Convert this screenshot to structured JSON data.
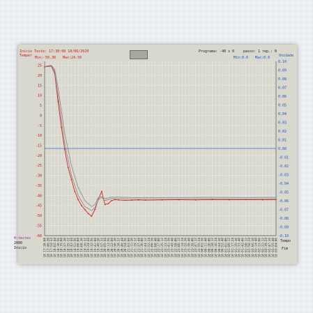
{
  "header": {
    "start_label": "Inicio Teste: 17:38:08 18/06/2020",
    "program_label": "Programa:  -40 x 0",
    "step_label": "passo: 1",
    "rep_label": "rep.: 0",
    "min_left": "Min:-50.36",
    "max_left": "Max:24.56",
    "min_right": "Min:0.0",
    "max_right": "Max:0.0",
    "y_left_title": "Temper",
    "y_right_title": "Unidade",
    "bottom_right": "Tempo",
    "bottom_right2": "Fim",
    "bottom_left1": "H:testes",
    "bottom_left2": "2000",
    "bottom_left3": "Inicio"
  },
  "colors": {
    "panel": "#d8d8cf",
    "grid": "#ffffff",
    "red_series": "#dd2020",
    "gray_series": "#8e8e8e",
    "blue_line": "#3a6ed8",
    "left_axis_text": "#c81818",
    "right_axis_text": "#1a55c8"
  },
  "chart_data": {
    "type": "line",
    "title": "",
    "y_left": {
      "ticks": [
        25,
        20,
        15,
        10,
        5,
        0,
        -5,
        -10,
        -15,
        -20,
        -25,
        -30,
        -35,
        -40,
        -45,
        -50,
        -55,
        -60
      ],
      "ylim": [
        -60,
        27
      ]
    },
    "y_right": {
      "ticks": [
        "0.10",
        "0.09",
        "0.08",
        "0.07",
        "0.06",
        "0.05",
        "0.04",
        "0.03",
        "0.02",
        "0.01",
        "0.00",
        "-0.01",
        "-0.02",
        "-0.03",
        "-0.04",
        "-0.05",
        "-0.06",
        "-0.07",
        "-0.08",
        "-0.09",
        "-0.10"
      ],
      "ylim": [
        -0.1,
        0.1
      ]
    },
    "x_tick_labels": [
      "17:38:08",
      "17:46:20",
      "17:54:32",
      "18:02:44",
      "18:10:56",
      "18:19:08",
      "18:27:20",
      "18:35:32",
      "18:43:44",
      "18:51:56",
      "19:00:08",
      "19:08:20",
      "19:16:32",
      "19:24:44",
      "19:32:56",
      "19:41:08",
      "19:49:20",
      "19:57:32",
      "20:05:44",
      "20:13:56",
      "20:22:08",
      "20:30:20",
      "20:38:32",
      "20:46:44",
      "20:54:56",
      "21:03:08",
      "21:11:20",
      "21:19:32",
      "21:27:44",
      "21:36:00",
      "21:44:12",
      "21:52:24",
      "22:00:36",
      "22:08:48",
      "22:17:00",
      "22:25:12",
      "22:33:24",
      "22:41:36",
      "22:49:48",
      "22:58:00",
      "23:06:12",
      "23:14:24",
      "23:22:36",
      "23:30:48",
      "23:39:00",
      "23:47:12",
      "23:55:24",
      "00:03:36",
      "00:11:48",
      "00:20:00",
      "00:28:12",
      "00:36:24",
      "00:44:36",
      "00:52:48",
      "01:01:00",
      "01:09:12",
      "01:17:24",
      "01:25:36",
      "01:33:48",
      "01:42:00",
      "01:50:12",
      "01:58:24",
      "02:06:36",
      "02:14:48",
      "02:23:00",
      "02:31:12",
      "02:39:24",
      "02:47:36",
      "02:55:48",
      "03:04:00"
    ],
    "xlim": [
      0,
      69
    ],
    "series": [
      {
        "color": "#dd2020",
        "axis": "left",
        "markers": true,
        "x": [
          0,
          1,
          2,
          3,
          4,
          5,
          6,
          7,
          8,
          9,
          10,
          11,
          12,
          13,
          14,
          15,
          16,
          17,
          18,
          19,
          20,
          21,
          22,
          24,
          26,
          28,
          30,
          35,
          40,
          45,
          50,
          55,
          60,
          65,
          69
        ],
        "y": [
          24.2,
          24.5,
          24.6,
          21,
          7,
          -6,
          -17,
          -26,
          -32,
          -38,
          -42,
          -45,
          -47,
          -49,
          -50.3,
          -47,
          -42,
          -38,
          -44.5,
          -44,
          -42.5,
          -42,
          -42.2,
          -42.4,
          -42.3,
          -42.2,
          -42.3,
          -42.2,
          -42.1,
          -42.2,
          -42.0,
          -42.1,
          -42.0,
          -42.1,
          -42.0
        ]
      },
      {
        "color": "#8e8e8e",
        "axis": "left",
        "markers": false,
        "x": [
          0,
          2,
          3,
          4,
          6,
          8,
          10,
          12,
          14,
          15,
          16,
          17,
          18,
          19,
          20,
          22,
          26,
          30,
          40,
          50,
          60,
          69
        ],
        "y": [
          24.5,
          25,
          22,
          10,
          -14,
          -30,
          -40,
          -45.5,
          -47.5,
          -46,
          -42,
          -41,
          -42.5,
          -42,
          -41.5,
          -41.5,
          -41.8,
          -41.7,
          -41.7,
          -41.6,
          -41.7,
          -41.6
        ]
      },
      {
        "color": "#8e8e8e",
        "axis": "left",
        "markers": false,
        "x": [
          0,
          2,
          3,
          4,
          6,
          8,
          10,
          12,
          14,
          15,
          16,
          17,
          18,
          19,
          20,
          22,
          26,
          30,
          40,
          50,
          60,
          69
        ],
        "y": [
          24.3,
          25,
          23,
          14,
          -9,
          -25,
          -36,
          -42.5,
          -45.5,
          -44.5,
          -41,
          -40.5,
          -41.5,
          -41.2,
          -40.8,
          -40.8,
          -41.0,
          -41.0,
          -41.0,
          -40.9,
          -41.0,
          -40.9
        ]
      },
      {
        "color": "#3a6ed8",
        "axis": "right",
        "markers": false,
        "x": [
          0,
          69
        ],
        "y": [
          0.0,
          0.0
        ]
      }
    ]
  }
}
